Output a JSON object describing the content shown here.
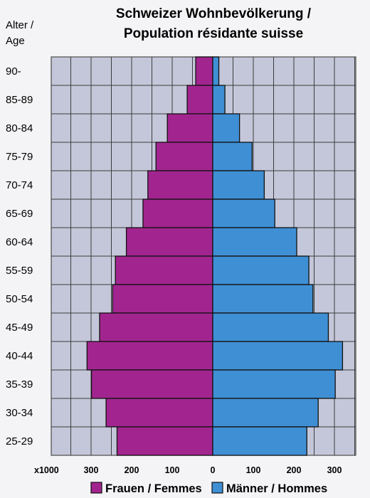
{
  "chart_data": {
    "type": "bar",
    "title_lines": [
      "Schweizer Wohnbevölkerung /",
      "Population résidante suisse"
    ],
    "ylabel_lines": [
      "Alter /",
      "Age"
    ],
    "categories": [
      "90-",
      "85-89",
      "80-84",
      "75-79",
      "70-74",
      "65-69",
      "60-64",
      "55-59",
      "50-54",
      "45-49",
      "40-44",
      "35-39",
      "30-34",
      "25-29"
    ],
    "series": [
      {
        "name": "Frauen / Femmes",
        "color": "#a2258f",
        "values": [
          42,
          63,
          112,
          140,
          160,
          172,
          213,
          240,
          247,
          279,
          310,
          299,
          263,
          236
        ]
      },
      {
        "name": "Männer / Hommes",
        "color": "#3f8fd4",
        "values": [
          15,
          30,
          66,
          97,
          127,
          153,
          207,
          237,
          247,
          285,
          320,
          302,
          260,
          232
        ]
      }
    ],
    "xaxis": {
      "unit_label": "x1000",
      "tick_labels": [
        "300",
        "200",
        "100",
        "0",
        "100",
        "200",
        "300"
      ],
      "tick_values": [
        -300,
        -200,
        -100,
        0,
        100,
        200,
        300
      ],
      "range": [
        -400,
        340
      ]
    },
    "grid": true,
    "plot_background": "#c4c7d9",
    "legend_position": "bottom"
  }
}
